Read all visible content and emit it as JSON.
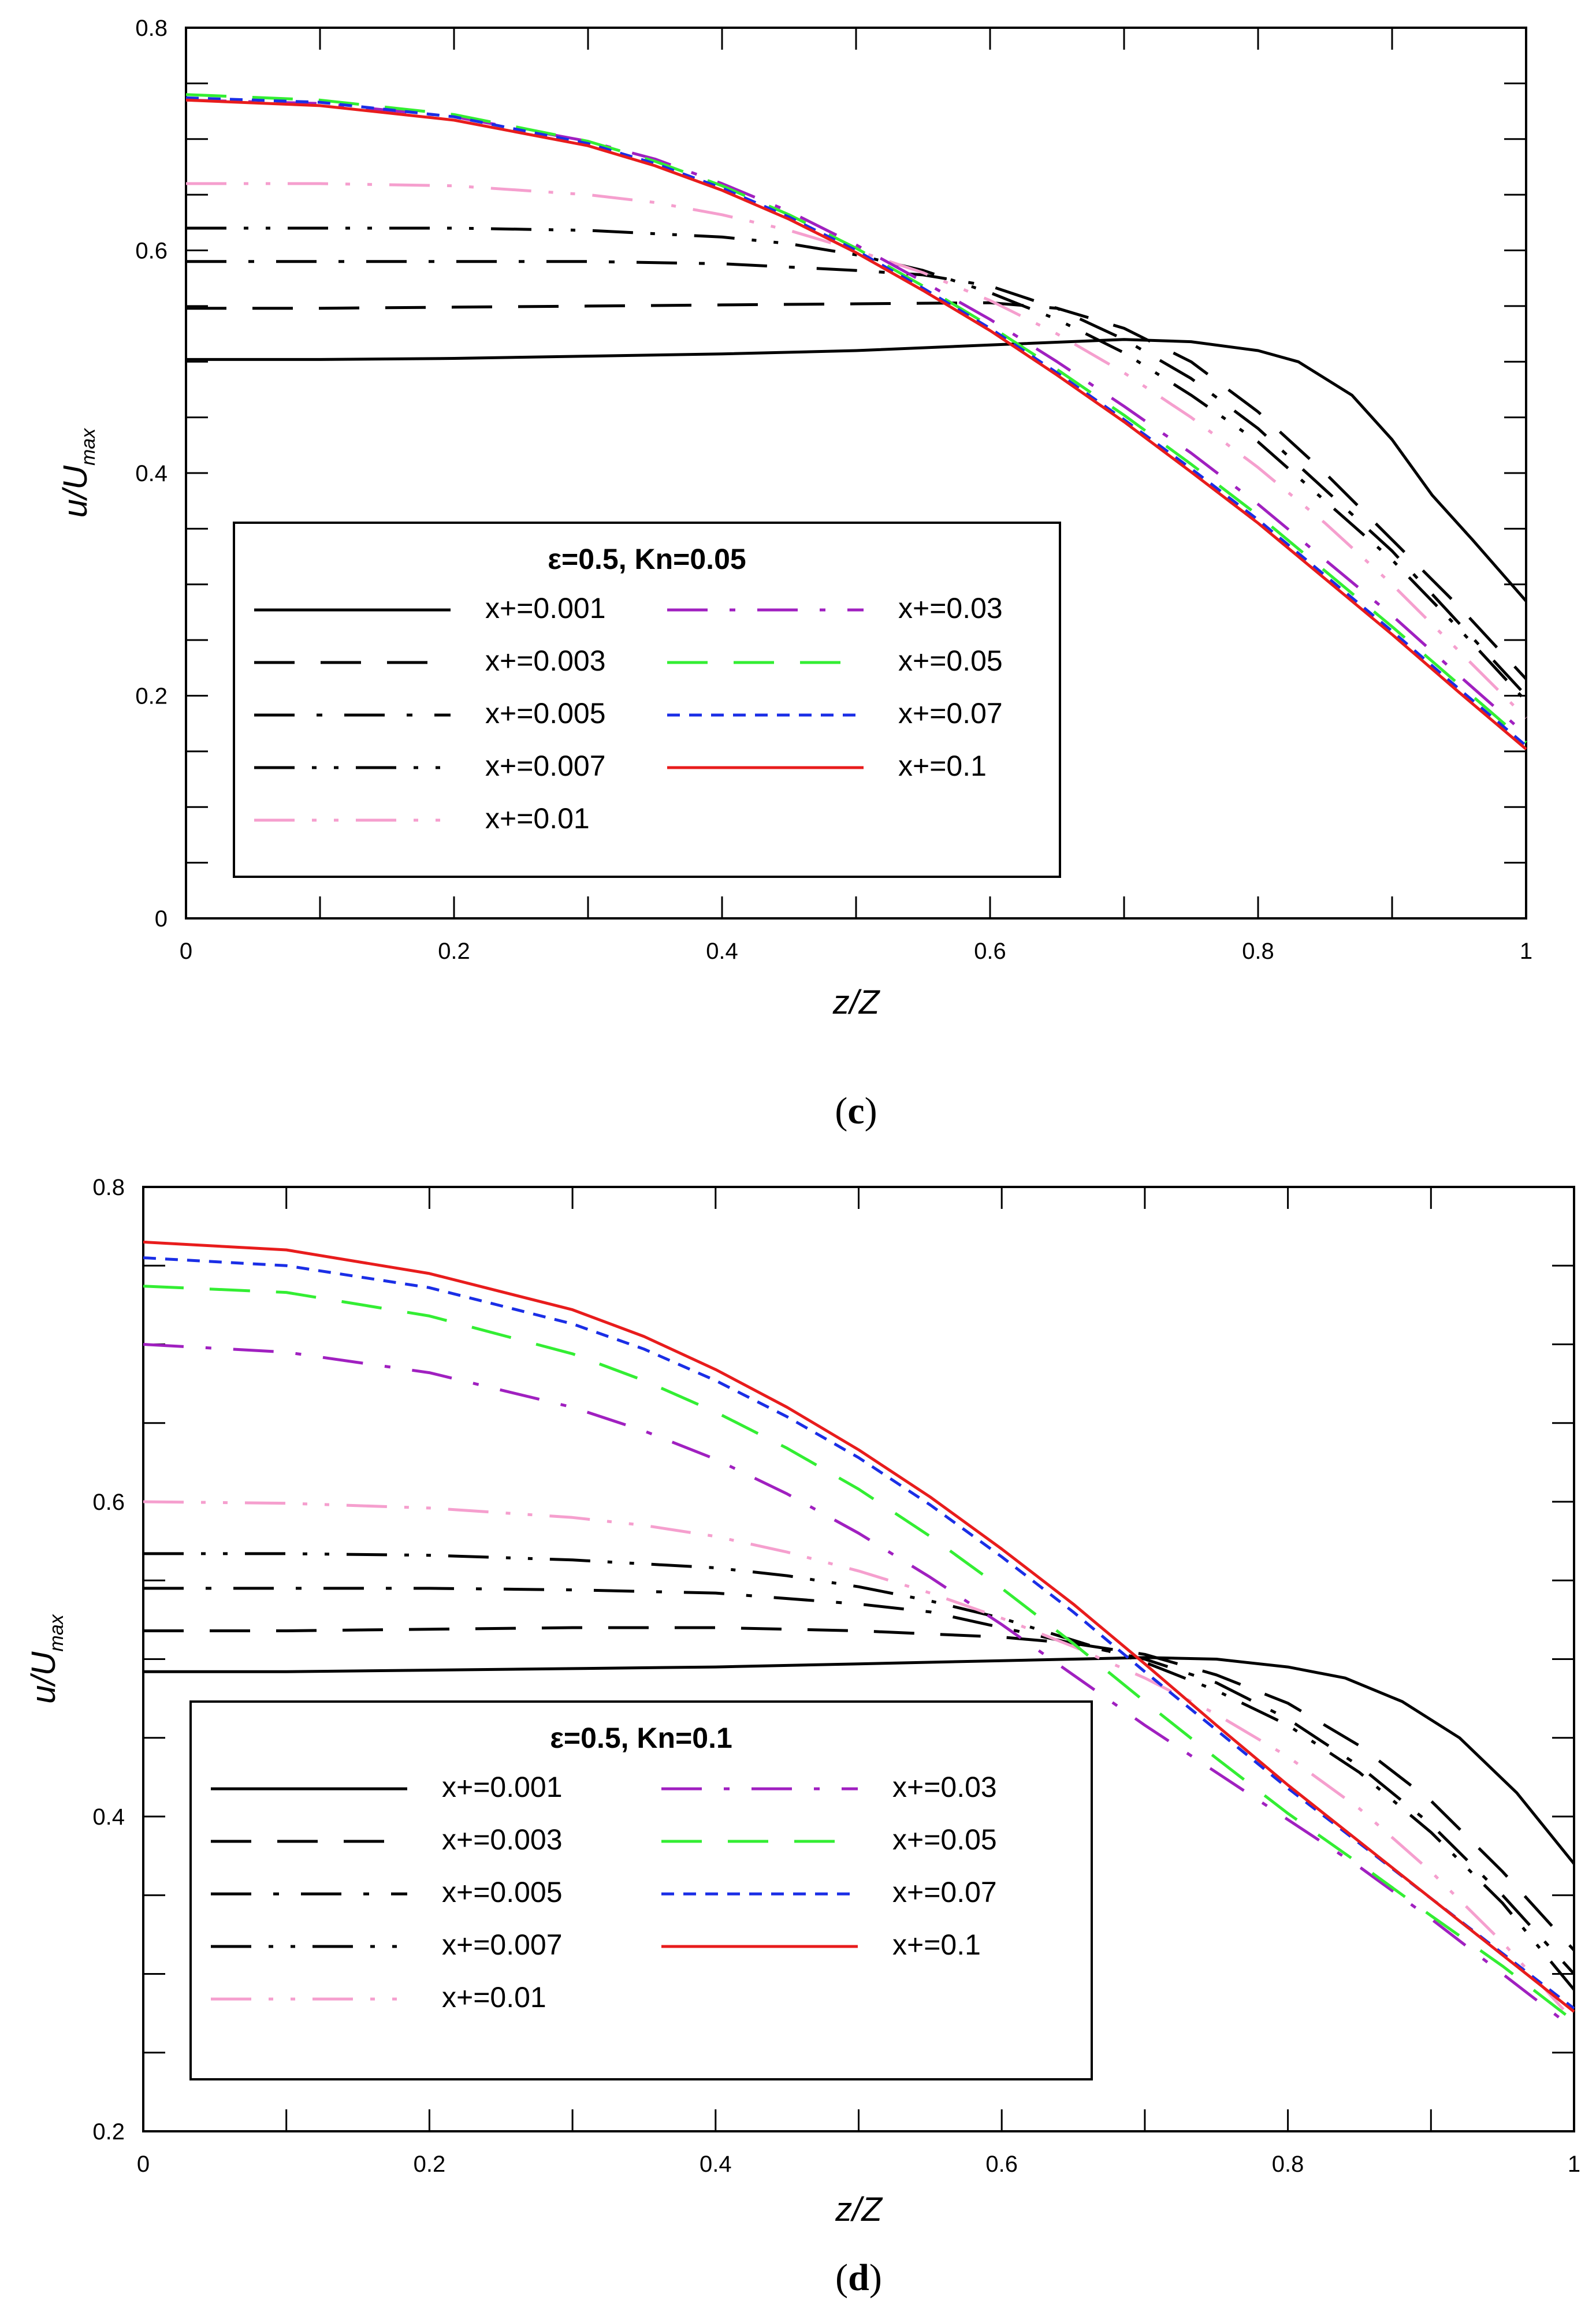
{
  "chart_data": [
    {
      "type": "line",
      "panel": "c",
      "caption_open": "(",
      "caption_letter": "c",
      "caption_close": ")",
      "xlabel": "z/Z",
      "ylabel_main": "u/U",
      "ylabel_sub": "max",
      "xlim": [
        0,
        1
      ],
      "ylim": [
        0,
        0.8
      ],
      "xticks": [
        0,
        0.2,
        0.4,
        0.6,
        0.8,
        1
      ],
      "xtick_labels": [
        "0",
        "0.2",
        "0.4",
        "0.6",
        "0.8",
        "1"
      ],
      "yticks": [
        0,
        0.2,
        0.4,
        0.6,
        0.8
      ],
      "ytick_labels": [
        "0",
        "0.2",
        "0.4",
        "0.6",
        "0.8"
      ],
      "legend_title": "ε=0.5, Kn=0.05",
      "legend_position": "lower-left",
      "series": [
        {
          "name": "x+=0.001",
          "color": "#000000",
          "dash": "solid",
          "x": [
            0,
            0.1,
            0.2,
            0.3,
            0.4,
            0.5,
            0.6,
            0.7,
            0.75,
            0.8,
            0.83,
            0.87,
            0.9,
            0.93,
            0.96,
            1.0
          ],
          "y": [
            0.502,
            0.502,
            0.503,
            0.505,
            0.507,
            0.51,
            0.515,
            0.52,
            0.518,
            0.51,
            0.5,
            0.47,
            0.43,
            0.38,
            0.34,
            0.285
          ]
        },
        {
          "name": "x+=0.003",
          "color": "#000000",
          "dash": "longdash",
          "x": [
            0,
            0.1,
            0.2,
            0.3,
            0.4,
            0.5,
            0.6,
            0.65,
            0.7,
            0.75,
            0.8,
            0.85,
            0.9,
            0.95,
            1.0
          ],
          "y": [
            0.548,
            0.548,
            0.549,
            0.55,
            0.551,
            0.552,
            0.553,
            0.548,
            0.53,
            0.5,
            0.455,
            0.4,
            0.34,
            0.28,
            0.215
          ]
        },
        {
          "name": "x+=0.005",
          "color": "#000000",
          "dash": "dashdot",
          "x": [
            0,
            0.1,
            0.2,
            0.3,
            0.4,
            0.5,
            0.55,
            0.6,
            0.65,
            0.7,
            0.75,
            0.8,
            0.85,
            0.9,
            0.95,
            1.0
          ],
          "y": [
            0.59,
            0.59,
            0.59,
            0.59,
            0.588,
            0.582,
            0.578,
            0.568,
            0.548,
            0.52,
            0.485,
            0.44,
            0.385,
            0.33,
            0.265,
            0.2
          ]
        },
        {
          "name": "x+=0.007",
          "color": "#000000",
          "dash": "dashdotdot",
          "x": [
            0,
            0.1,
            0.2,
            0.3,
            0.4,
            0.45,
            0.5,
            0.55,
            0.6,
            0.65,
            0.7,
            0.75,
            0.8,
            0.85,
            0.9,
            0.95,
            1.0
          ],
          "y": [
            0.62,
            0.62,
            0.62,
            0.618,
            0.612,
            0.606,
            0.596,
            0.582,
            0.562,
            0.538,
            0.508,
            0.47,
            0.428,
            0.375,
            0.322,
            0.26,
            0.195
          ]
        },
        {
          "name": "x+=0.01",
          "color": "#f59fce",
          "dash": "dashdotdot",
          "x": [
            0,
            0.1,
            0.2,
            0.3,
            0.35,
            0.4,
            0.45,
            0.5,
            0.55,
            0.6,
            0.65,
            0.7,
            0.75,
            0.8,
            0.85,
            0.9,
            0.95,
            1.0
          ],
          "y": [
            0.66,
            0.66,
            0.658,
            0.65,
            0.643,
            0.632,
            0.618,
            0.6,
            0.58,
            0.555,
            0.525,
            0.49,
            0.45,
            0.405,
            0.355,
            0.3,
            0.24,
            0.18
          ]
        },
        {
          "name": "x+=0.03",
          "color": "#a020c0",
          "dash": "dashdot",
          "x": [
            0,
            0.1,
            0.2,
            0.3,
            0.35,
            0.4,
            0.45,
            0.5,
            0.55,
            0.6,
            0.65,
            0.7,
            0.75,
            0.8,
            0.85,
            0.9,
            0.95,
            1.0
          ],
          "y": [
            0.735,
            0.732,
            0.72,
            0.698,
            0.682,
            0.66,
            0.635,
            0.605,
            0.572,
            0.538,
            0.5,
            0.46,
            0.418,
            0.372,
            0.322,
            0.272,
            0.218,
            0.165
          ]
        },
        {
          "name": "x+=0.05",
          "color": "#33ee33",
          "dash": "longdash",
          "x": [
            0,
            0.1,
            0.2,
            0.3,
            0.35,
            0.4,
            0.45,
            0.5,
            0.55,
            0.6,
            0.65,
            0.7,
            0.75,
            0.8,
            0.85,
            0.9,
            0.95,
            1.0
          ],
          "y": [
            0.74,
            0.735,
            0.722,
            0.698,
            0.68,
            0.658,
            0.632,
            0.602,
            0.568,
            0.532,
            0.493,
            0.452,
            0.408,
            0.362,
            0.312,
            0.262,
            0.21,
            0.158
          ]
        },
        {
          "name": "x+=0.07",
          "color": "#1a2ee6",
          "dash": "shortdash",
          "x": [
            0,
            0.1,
            0.2,
            0.3,
            0.35,
            0.4,
            0.45,
            0.5,
            0.55,
            0.6,
            0.65,
            0.7,
            0.75,
            0.8,
            0.85,
            0.9,
            0.95,
            1.0
          ],
          "y": [
            0.737,
            0.733,
            0.72,
            0.696,
            0.678,
            0.656,
            0.63,
            0.6,
            0.566,
            0.53,
            0.49,
            0.448,
            0.404,
            0.358,
            0.308,
            0.258,
            0.206,
            0.155
          ]
        },
        {
          "name": "x+=0.1",
          "color": "#e81c1c",
          "dash": "solid",
          "x": [
            0,
            0.1,
            0.2,
            0.3,
            0.35,
            0.4,
            0.45,
            0.5,
            0.55,
            0.6,
            0.65,
            0.7,
            0.75,
            0.8,
            0.85,
            0.9,
            0.95,
            1.0
          ],
          "y": [
            0.735,
            0.73,
            0.717,
            0.694,
            0.676,
            0.654,
            0.628,
            0.598,
            0.564,
            0.528,
            0.488,
            0.446,
            0.401,
            0.355,
            0.305,
            0.255,
            0.203,
            0.152
          ]
        }
      ]
    },
    {
      "type": "line",
      "panel": "d",
      "caption_open": "(",
      "caption_letter": "d",
      "caption_close": ")",
      "xlabel": "z/Z",
      "ylabel_main": "u/U",
      "ylabel_sub": "max",
      "xlim": [
        0,
        1
      ],
      "ylim": [
        0.2,
        0.8
      ],
      "xticks": [
        0,
        0.2,
        0.4,
        0.6,
        0.8,
        1
      ],
      "xtick_labels": [
        "0",
        "0.2",
        "0.4",
        "0.6",
        "0.8",
        "1"
      ],
      "yticks": [
        0.2,
        0.4,
        0.6,
        0.8
      ],
      "ytick_labels": [
        "0.2",
        "0.4",
        "0.6",
        "0.8"
      ],
      "legend_title": "ε=0.5, Kn=0.1",
      "legend_position": "lower-left",
      "series": [
        {
          "name": "x+=0.001",
          "color": "#000000",
          "dash": "solid",
          "x": [
            0,
            0.1,
            0.2,
            0.3,
            0.4,
            0.5,
            0.6,
            0.7,
            0.75,
            0.8,
            0.84,
            0.88,
            0.92,
            0.96,
            1.0
          ],
          "y": [
            0.492,
            0.492,
            0.493,
            0.494,
            0.495,
            0.497,
            0.499,
            0.501,
            0.5,
            0.495,
            0.488,
            0.473,
            0.45,
            0.415,
            0.37
          ]
        },
        {
          "name": "x+=0.003",
          "color": "#000000",
          "dash": "longdash",
          "x": [
            0,
            0.1,
            0.2,
            0.3,
            0.4,
            0.5,
            0.6,
            0.65,
            0.7,
            0.75,
            0.8,
            0.85,
            0.9,
            0.95,
            1.0
          ],
          "y": [
            0.518,
            0.518,
            0.519,
            0.52,
            0.52,
            0.518,
            0.514,
            0.51,
            0.503,
            0.49,
            0.472,
            0.445,
            0.41,
            0.365,
            0.315
          ]
        },
        {
          "name": "x+=0.005",
          "color": "#000000",
          "dash": "dashdot",
          "x": [
            0,
            0.1,
            0.2,
            0.3,
            0.4,
            0.5,
            0.55,
            0.6,
            0.65,
            0.7,
            0.75,
            0.8,
            0.85,
            0.9,
            0.95,
            1.0
          ],
          "y": [
            0.545,
            0.545,
            0.545,
            0.544,
            0.542,
            0.535,
            0.53,
            0.52,
            0.51,
            0.5,
            0.485,
            0.462,
            0.432,
            0.395,
            0.35,
            0.3
          ]
        },
        {
          "name": "x+=0.007",
          "color": "#000000",
          "dash": "dashdotdot",
          "x": [
            0,
            0.1,
            0.2,
            0.3,
            0.4,
            0.45,
            0.5,
            0.55,
            0.6,
            0.65,
            0.7,
            0.75,
            0.8,
            0.85,
            0.9,
            0.95,
            1.0
          ],
          "y": [
            0.567,
            0.567,
            0.566,
            0.563,
            0.558,
            0.553,
            0.546,
            0.537,
            0.526,
            0.512,
            0.498,
            0.48,
            0.458,
            0.428,
            0.39,
            0.345,
            0.29
          ]
        },
        {
          "name": "x+=0.01",
          "color": "#f59fce",
          "dash": "dashdotdot",
          "x": [
            0,
            0.1,
            0.2,
            0.3,
            0.35,
            0.4,
            0.45,
            0.5,
            0.55,
            0.6,
            0.65,
            0.7,
            0.75,
            0.8,
            0.85,
            0.9,
            0.95,
            1.0
          ],
          "y": [
            0.6,
            0.599,
            0.596,
            0.59,
            0.585,
            0.578,
            0.568,
            0.556,
            0.542,
            0.526,
            0.508,
            0.488,
            0.465,
            0.438,
            0.405,
            0.365,
            0.32,
            0.27
          ]
        },
        {
          "name": "x+=0.03",
          "color": "#a020c0",
          "dash": "dashdot",
          "x": [
            0,
            0.1,
            0.2,
            0.3,
            0.35,
            0.4,
            0.45,
            0.5,
            0.55,
            0.6,
            0.65,
            0.7,
            0.75,
            0.8,
            0.85,
            0.9,
            0.95,
            1.0
          ],
          "y": [
            0.7,
            0.695,
            0.682,
            0.66,
            0.645,
            0.627,
            0.605,
            0.58,
            0.552,
            0.522,
            0.49,
            0.458,
            0.428,
            0.398,
            0.368,
            0.335,
            0.3,
            0.265
          ]
        },
        {
          "name": "x+=0.05",
          "color": "#33ee33",
          "dash": "longdash",
          "x": [
            0,
            0.1,
            0.2,
            0.3,
            0.35,
            0.4,
            0.45,
            0.5,
            0.55,
            0.6,
            0.65,
            0.7,
            0.75,
            0.8,
            0.85,
            0.9,
            0.95,
            1.0
          ],
          "y": [
            0.737,
            0.733,
            0.718,
            0.694,
            0.677,
            0.657,
            0.634,
            0.608,
            0.578,
            0.545,
            0.51,
            0.473,
            0.437,
            0.402,
            0.37,
            0.337,
            0.305,
            0.27
          ]
        },
        {
          "name": "x+=0.07",
          "color": "#1a2ee6",
          "dash": "shortdash",
          "x": [
            0,
            0.1,
            0.2,
            0.3,
            0.35,
            0.4,
            0.45,
            0.5,
            0.55,
            0.6,
            0.65,
            0.7,
            0.75,
            0.8,
            0.85,
            0.9,
            0.95,
            1.0
          ],
          "y": [
            0.755,
            0.75,
            0.736,
            0.713,
            0.697,
            0.677,
            0.654,
            0.628,
            0.598,
            0.565,
            0.53,
            0.492,
            0.455,
            0.418,
            0.383,
            0.348,
            0.313,
            0.278
          ]
        },
        {
          "name": "x+=0.1",
          "color": "#e81c1c",
          "dash": "solid",
          "x": [
            0,
            0.1,
            0.2,
            0.3,
            0.35,
            0.4,
            0.45,
            0.5,
            0.55,
            0.6,
            0.65,
            0.7,
            0.75,
            0.8,
            0.85,
            0.9,
            0.95,
            1.0
          ],
          "y": [
            0.765,
            0.76,
            0.745,
            0.722,
            0.705,
            0.684,
            0.66,
            0.633,
            0.603,
            0.57,
            0.535,
            0.497,
            0.458,
            0.42,
            0.384,
            0.348,
            0.312,
            0.276
          ]
        }
      ]
    }
  ]
}
